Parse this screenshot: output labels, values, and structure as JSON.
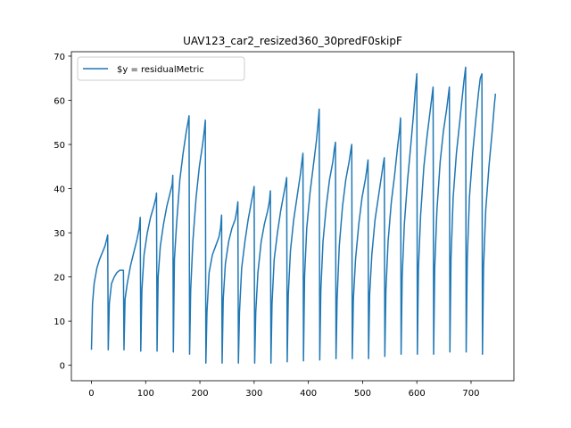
{
  "chart_data": {
    "type": "line",
    "title": "UAV123_car2_resized360_30predF0skipF",
    "xlabel": "",
    "ylabel": "",
    "xlim": [
      -37,
      779
    ],
    "ylim": [
      -3.5,
      71
    ],
    "x_ticks": [
      0,
      100,
      200,
      300,
      400,
      500,
      600,
      700
    ],
    "y_ticks": [
      0,
      10,
      20,
      30,
      40,
      50,
      60,
      70
    ],
    "grid": false,
    "legend": {
      "placement": "top-left",
      "entries": [
        "$y = residualMetric"
      ]
    },
    "series": [
      {
        "name": "$y = residualMetric",
        "color": "#1f77b4",
        "segments": [
          {
            "x": [
              0,
              2,
              5,
              10,
              15,
              20,
              25,
              29,
              30
            ],
            "y": [
              3.5,
              14,
              18.5,
              22,
              24,
              25.5,
              27,
              29,
              29.5
            ]
          },
          {
            "x": [
              31,
              33,
              37,
              42,
              47,
              52,
              57,
              59
            ],
            "y": [
              3.5,
              14,
              18.5,
              20,
              21,
              21.5,
              21.5,
              21.5
            ]
          },
          {
            "x": [
              60,
              62,
              66,
              72,
              78,
              84,
              88,
              90
            ],
            "y": [
              3.5,
              15,
              18.5,
              22.5,
              25.5,
              28.5,
              31,
              33.5
            ]
          },
          {
            "x": [
              91,
              93,
              97,
              103,
              109,
              115,
              119,
              120
            ],
            "y": [
              3.2,
              17,
              25,
              30,
              33.5,
              36,
              38,
              39
            ]
          },
          {
            "x": [
              121,
              123,
              127,
              133,
              139,
              145,
              149,
              150
            ],
            "y": [
              3.2,
              20,
              27,
              32,
              36,
              39,
              41,
              43
            ]
          },
          {
            "x": [
              151,
              153,
              157,
              163,
              169,
              175,
              178,
              180
            ],
            "y": [
              3,
              24,
              32,
              42,
              48,
              53,
              55,
              56.5
            ]
          },
          {
            "x": [
              181,
              183,
              187,
              193,
              199,
              205,
              208,
              210
            ],
            "y": [
              2.5,
              17,
              28,
              38,
              45,
              50,
              53,
              55.5
            ]
          },
          {
            "x": [
              211,
              213,
              217,
              223,
              229,
              235,
              238,
              240
            ],
            "y": [
              0.5,
              12,
              21,
              25,
              27,
              29,
              31,
              34
            ]
          },
          {
            "x": [
              241,
              243,
              247,
              253,
              259,
              265,
              268,
              270
            ],
            "y": [
              0.5,
              15,
              23,
              28,
              31,
              33,
              35,
              37
            ]
          },
          {
            "x": [
              271,
              273,
              277,
              283,
              289,
              295,
              298,
              300
            ],
            "y": [
              0.5,
              12,
              22,
              28,
              33,
              37,
              39,
              40.5
            ]
          },
          {
            "x": [
              301,
              303,
              307,
              313,
              319,
              325,
              328,
              330
            ],
            "y": [
              0.5,
              12,
              21,
              28,
              32,
              35,
              37,
              39.5
            ]
          },
          {
            "x": [
              331,
              333,
              337,
              343,
              349,
              355,
              358,
              360
            ],
            "y": [
              0.5,
              14,
              24,
              30,
              35,
              39,
              41,
              42.5
            ]
          },
          {
            "x": [
              361,
              363,
              367,
              373,
              379,
              385,
              388,
              390
            ],
            "y": [
              0.8,
              16,
              26,
              33,
              38,
              43,
              46,
              48
            ]
          },
          {
            "x": [
              391,
              393,
              397,
              403,
              409,
              415,
              418,
              420
            ],
            "y": [
              1,
              20,
              31,
              39,
              45,
              51,
              55,
              58
            ]
          },
          {
            "x": [
              421,
              423,
              427,
              433,
              439,
              445,
              448,
              450
            ],
            "y": [
              1.2,
              17,
              28,
              36,
              42,
              46,
              49,
              50.5
            ]
          },
          {
            "x": [
              451,
              453,
              457,
              463,
              469,
              475,
              478,
              480
            ],
            "y": [
              1.5,
              15,
              27,
              36,
              42,
              46,
              48.5,
              50
            ]
          },
          {
            "x": [
              481,
              483,
              487,
              493,
              499,
              505,
              508,
              510
            ],
            "y": [
              1.5,
              15,
              24,
              32,
              38,
              42,
              44.5,
              46.5
            ]
          },
          {
            "x": [
              511,
              513,
              517,
              523,
              529,
              535,
              538,
              540
            ],
            "y": [
              1.5,
              16,
              25,
              33,
              38,
              43,
              45.5,
              47
            ]
          },
          {
            "x": [
              541,
              543,
              547,
              553,
              559,
              565,
              568,
              570
            ],
            "y": [
              2,
              17,
              28,
              37,
              43,
              50,
              53,
              56
            ]
          },
          {
            "x": [
              571,
              573,
              577,
              583,
              589,
              594,
              597,
              600
            ],
            "y": [
              2.5,
              20,
              32,
              42,
              50,
              57,
              62,
              66
            ]
          },
          {
            "x": [
              601,
              603,
              607,
              613,
              619,
              625,
              628,
              630
            ],
            "y": [
              2.5,
              22,
              34,
              45,
              52,
              58,
              61,
              63
            ]
          },
          {
            "x": [
              631,
              633,
              637,
              643,
              649,
              655,
              658,
              660
            ],
            "y": [
              2.5,
              22,
              35,
              46,
              53,
              58,
              61,
              63
            ]
          },
          {
            "x": [
              661,
              663,
              667,
              673,
              679,
              684,
              687,
              690
            ],
            "y": [
              3,
              24,
              38,
              48,
              55,
              61,
              64.5,
              67.5
            ]
          },
          {
            "x": [
              691,
              693,
              697,
              703,
              709,
              714,
              717,
              720
            ],
            "y": [
              3,
              24,
              38,
              48,
              56,
              62,
              65,
              66
            ]
          },
          {
            "x": [
              721,
              723,
              727,
              733,
              739,
              743,
              745
            ],
            "y": [
              2.5,
              22,
              35,
              45,
              53,
              59,
              61.5
            ]
          }
        ]
      }
    ]
  }
}
